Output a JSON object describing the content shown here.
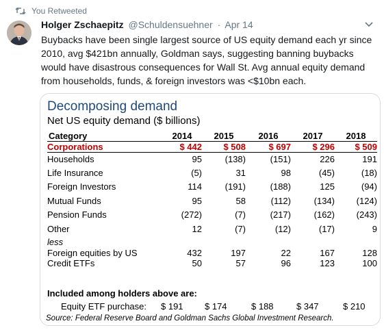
{
  "retweet": {
    "label": "You Retweeted"
  },
  "tweet": {
    "display_name": "Holger Zschaepitz",
    "handle": "@Schuldensuehner",
    "separator": "·",
    "date": "Apr 14",
    "text": "Buybacks have been single largest source of US equity demand each yr since 2010, avg $421bn annually, Goldman says, suggesting banning buybacks would have disastrous consequences for Wall St. Avg annual equity demand from households, funds, & foreign investors was <$10bn each."
  },
  "card": {
    "title": "Decomposing demand",
    "subtitle": "Net US equity demand ($ billions)",
    "header": {
      "category": "Category",
      "years": [
        "2014",
        "2015",
        "2016",
        "2017",
        "2018"
      ]
    },
    "rows": [
      {
        "label": "Corporations",
        "values": [
          "$ 442",
          "$ 508",
          "$ 697",
          "$ 296",
          "$ 509"
        ]
      },
      {
        "label": "Households",
        "values": [
          "95",
          "(138)",
          "(151)",
          "226",
          "191"
        ]
      },
      {
        "label": "Life Insurance",
        "values": [
          "(5)",
          "31",
          "98",
          "(45)",
          "(18)"
        ]
      },
      {
        "label": "Foreign Investors",
        "values": [
          "114",
          "(191)",
          "(188)",
          "125",
          "(94)"
        ]
      },
      {
        "label": "Mutual Funds",
        "values": [
          "95",
          "58",
          "(112)",
          "(134)",
          "(124)"
        ]
      },
      {
        "label": "Pension Funds",
        "values": [
          "(272)",
          "(7)",
          "(217)",
          "(162)",
          "(243)"
        ]
      },
      {
        "label": "Other",
        "values": [
          "12",
          "(7)",
          "(12)",
          "(17)",
          "9"
        ]
      }
    ],
    "less_label": "less",
    "less_rows": [
      {
        "label": "Foreign equities by US",
        "values": [
          "432",
          "197",
          "22",
          "167",
          "128"
        ]
      },
      {
        "label": "Credit ETFs",
        "values": [
          "50",
          "57",
          "96",
          "123",
          "100"
        ]
      }
    ],
    "included_label": "Included among holders above are:",
    "etf_row": {
      "label": "Equity ETF purchase:",
      "values": [
        "$ 191",
        "$ 174",
        "$ 188",
        "$ 347",
        "$ 210"
      ]
    },
    "source": "Source: Federal Reserve Board and Goldman Sachs Global Investment Research."
  },
  "colors": {
    "corporations": "#c00000",
    "title": "#1f497d",
    "meta": "#657786"
  },
  "icons": {
    "retweet": "retweet-icon",
    "caret": "chevron-down-icon"
  }
}
